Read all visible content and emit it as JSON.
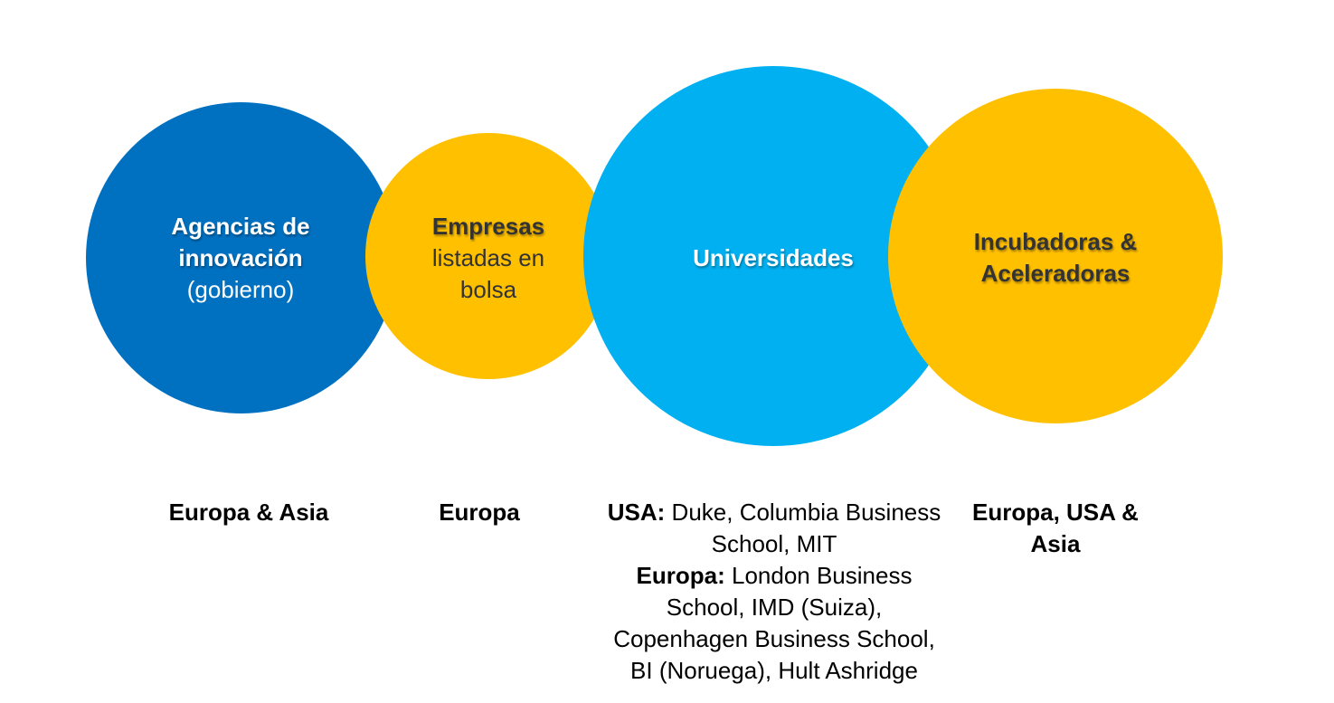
{
  "nodes": [
    {
      "bold": "Agencias de innovación",
      "text": "(gobierno)",
      "region": "Europa & Asia"
    },
    {
      "bold": "Empresas",
      "text": "listadas en bolsa",
      "region": "Europa"
    },
    {
      "bold": "Universidades",
      "region_parts": [
        {
          "bold": "USA:",
          "text": "Duke, Columbia Business School, MIT"
        },
        {
          "bold": "Europa:",
          "text": "London Business School, IMD (Suiza), Copenhagen Business School, BI (Noruega), Hult Ashridge"
        }
      ]
    },
    {
      "bold": "Incubadoras & Aceleradoras",
      "region": "Europa, USA & Asia"
    }
  ]
}
